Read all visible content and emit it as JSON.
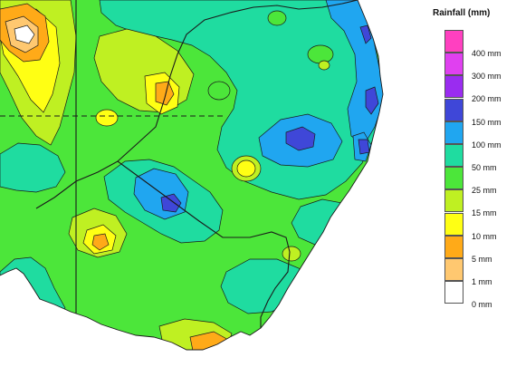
{
  "legend": {
    "title": "Rainfall (mm)",
    "classes": [
      {
        "label": "400 mm",
        "color": "#ff40c0"
      },
      {
        "label": "300 mm",
        "color": "#e040f0"
      },
      {
        "label": "200 mm",
        "color": "#9a2cf0"
      },
      {
        "label": "150 mm",
        "color": "#3f47d8"
      },
      {
        "label": "100 mm",
        "color": "#20a6f0"
      },
      {
        "label": "50 mm",
        "color": "#1fdca0"
      },
      {
        "label": "25 mm",
        "color": "#4ce63a"
      },
      {
        "label": "15 mm",
        "color": "#bff022"
      },
      {
        "label": "10 mm",
        "color": "#ffff14"
      },
      {
        "label": "5 mm",
        "color": "#ffaa18"
      },
      {
        "label": "1 mm",
        "color": "#ffc870"
      },
      {
        "label": "0 mm",
        "color": "#ffffff"
      }
    ]
  },
  "map": {
    "ocean_color": "#ffffff",
    "boundary_color": "#1a1a1a"
  }
}
